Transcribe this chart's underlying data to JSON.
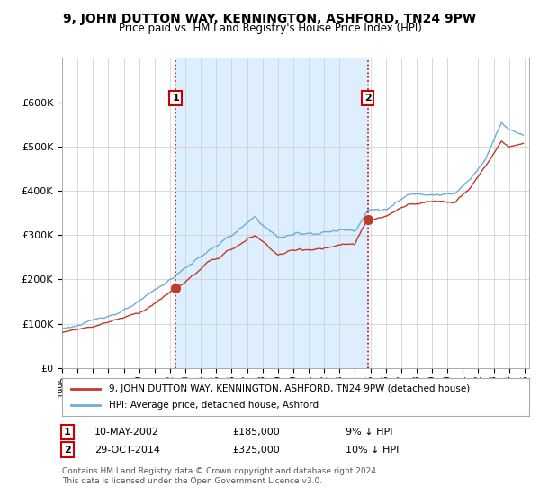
{
  "title": "9, JOHN DUTTON WAY, KENNINGTON, ASHFORD, TN24 9PW",
  "subtitle": "Price paid vs. HM Land Registry's House Price Index (HPI)",
  "ylim": [
    0,
    700000
  ],
  "yticks": [
    0,
    100000,
    200000,
    300000,
    400000,
    500000,
    600000
  ],
  "ytick_labels": [
    "£0",
    "£100K",
    "£200K",
    "£300K",
    "£400K",
    "£500K",
    "£600K"
  ],
  "hpi_color": "#6baed6",
  "price_color": "#c0392b",
  "shade_color": "#ddeeff",
  "sale1_date": 2002.36,
  "sale1_price": 185000,
  "sale1_label": "1",
  "sale2_date": 2014.83,
  "sale2_price": 325000,
  "sale2_label": "2",
  "vline_color": "#cc0000",
  "annotation1_date": "10-MAY-2002",
  "annotation1_price": "£185,000",
  "annotation1_pct": "9% ↓ HPI",
  "annotation2_date": "29-OCT-2014",
  "annotation2_price": "£325,000",
  "annotation2_pct": "10% ↓ HPI",
  "legend_line1": "9, JOHN DUTTON WAY, KENNINGTON, ASHFORD, TN24 9PW (detached house)",
  "legend_line2": "HPI: Average price, detached house, Ashford",
  "footnote": "Contains HM Land Registry data © Crown copyright and database right 2024.\nThis data is licensed under the Open Government Licence v3.0.",
  "background_color": "#ffffff",
  "grid_color": "#cccccc"
}
